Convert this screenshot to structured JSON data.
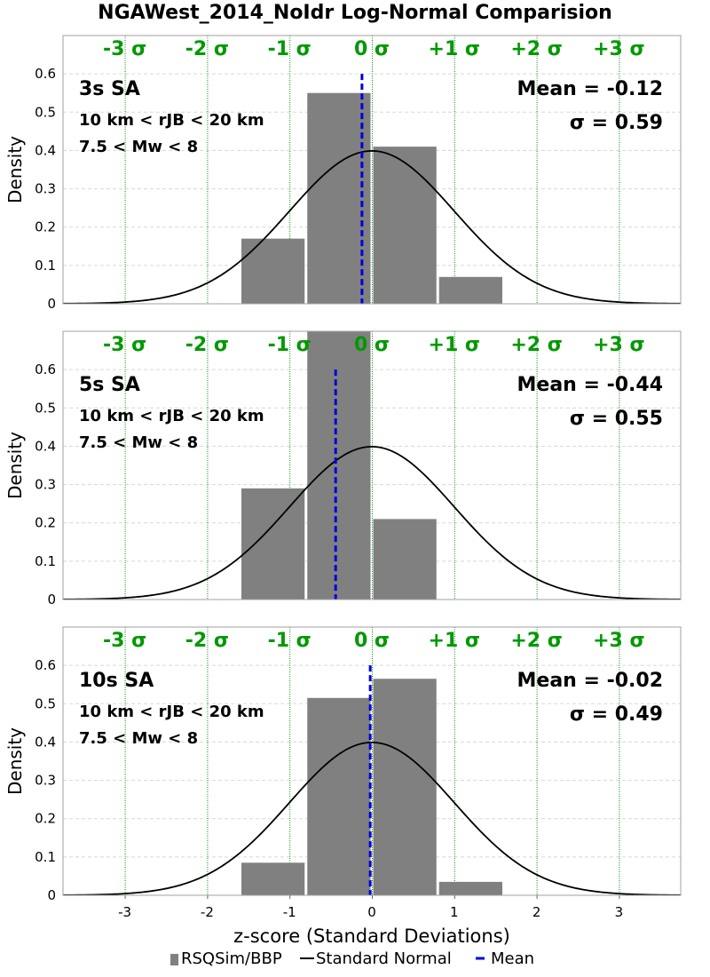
{
  "title": "NGAWest_2014_NoIdr Log-Normal Comparision",
  "xlabel": "z-score (Standard Deviations)",
  "ylabel": "Density",
  "legend": {
    "histogram_label": "RSQSim/BBP",
    "curve_label": "Standard Normal",
    "mean_label": "Mean",
    "placement": "bottom"
  },
  "colors": {
    "bar": "#808080",
    "curve": "#000000",
    "mean_line": "#0000dd",
    "sigma_text": "#009900",
    "sigma_line": "#008800",
    "grid": "#d8d8d8"
  },
  "sigma_labels": [
    "-3 σ",
    "-2 σ",
    "-1 σ",
    "0 σ",
    "+1 σ",
    "+2 σ",
    "+3 σ"
  ],
  "chart_data": [
    {
      "type": "bar",
      "label": "3s SA",
      "distance_range": "10 km < rJB < 20 km",
      "magnitude_range": "7.5 < Mw < 8",
      "mean_text": "Mean = -0.12",
      "sigma_text": "σ = 0.59",
      "mean": -0.12,
      "bins": [
        {
          "x0": -1.6,
          "x1": -0.8,
          "density": 0.17
        },
        {
          "x0": -0.8,
          "x1": 0.0,
          "density": 0.55
        },
        {
          "x0": 0.0,
          "x1": 0.8,
          "density": 0.41
        },
        {
          "x0": 0.8,
          "x1": 1.6,
          "density": 0.07
        }
      ],
      "xlim": [
        -3.75,
        3.75
      ],
      "ylim": [
        0,
        0.7
      ],
      "yticks": [
        "0",
        "0.1",
        "0.2",
        "0.3",
        "0.4",
        "0.5",
        "0.6"
      ],
      "xticks": []
    },
    {
      "type": "bar",
      "label": "5s SA",
      "distance_range": "10 km < rJB < 20 km",
      "magnitude_range": "7.5 < Mw < 8",
      "mean_text": "Mean = -0.44",
      "sigma_text": "σ = 0.55",
      "mean": -0.44,
      "bins": [
        {
          "x0": -1.6,
          "x1": -0.8,
          "density": 0.29
        },
        {
          "x0": -0.8,
          "x1": 0.0,
          "density": 0.7
        },
        {
          "x0": 0.0,
          "x1": 0.8,
          "density": 0.21
        }
      ],
      "xlim": [
        -3.75,
        3.75
      ],
      "ylim": [
        0,
        0.7
      ],
      "yticks": [
        "0",
        "0.1",
        "0.2",
        "0.3",
        "0.4",
        "0.5",
        "0.6"
      ],
      "xticks": []
    },
    {
      "type": "bar",
      "label": "10s SA",
      "distance_range": "10 km < rJB < 20 km",
      "magnitude_range": "7.5 < Mw < 8",
      "mean_text": "Mean = -0.02",
      "sigma_text": "σ = 0.49",
      "mean": -0.02,
      "bins": [
        {
          "x0": -1.6,
          "x1": -0.8,
          "density": 0.085
        },
        {
          "x0": -0.8,
          "x1": 0.0,
          "density": 0.515
        },
        {
          "x0": 0.0,
          "x1": 0.8,
          "density": 0.565
        },
        {
          "x0": 0.8,
          "x1": 1.6,
          "density": 0.035
        }
      ],
      "xlim": [
        -3.75,
        3.75
      ],
      "ylim": [
        0,
        0.7
      ],
      "yticks": [
        "0",
        "0.1",
        "0.2",
        "0.3",
        "0.4",
        "0.5",
        "0.6"
      ],
      "xticks": [
        "-3",
        "-2",
        "-1",
        "0",
        "1",
        "2",
        "3"
      ]
    }
  ]
}
